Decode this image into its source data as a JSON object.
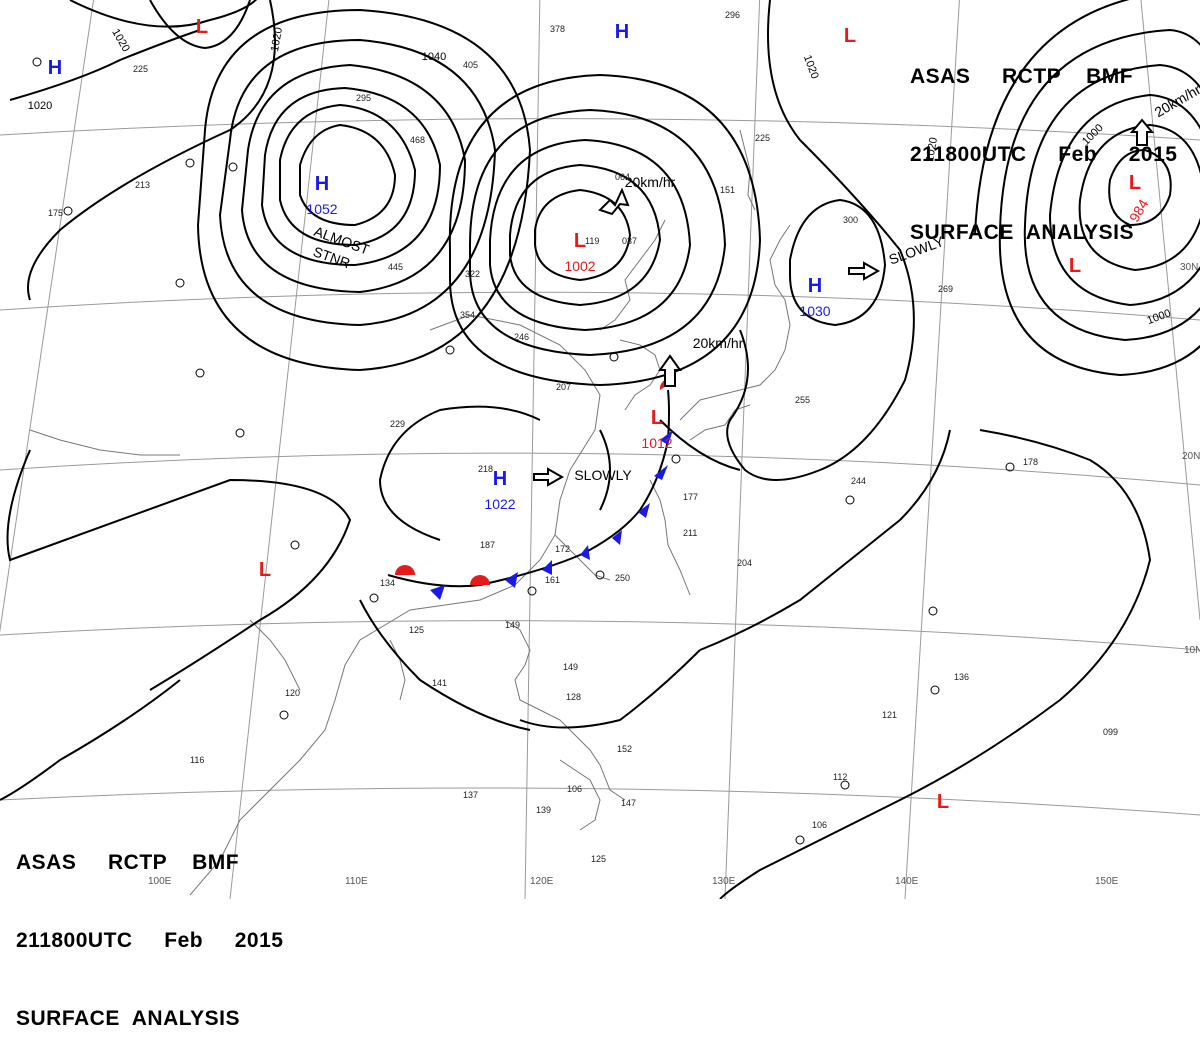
{
  "header_top": {
    "line1": "ASAS     RCTP    BMF",
    "line2": "211800UTC     Feb     2015",
    "line3": "SURFACE  ANALYSIS"
  },
  "header_bottom": {
    "line1": "ASAS     RCTP    BMF",
    "line2": "211800UTC     Feb     2015",
    "line3": "SURFACE  ANALYSIS"
  },
  "longitude_labels": [
    "100E",
    "110E",
    "120E",
    "130E",
    "140E",
    "150E"
  ],
  "latitude_labels": [
    "10N",
    "20N",
    "30N"
  ],
  "pressure_centers": [
    {
      "type": "H",
      "value": "",
      "color": "#1a1ae6"
    },
    {
      "type": "H",
      "value": "1052",
      "color": "#1a1ae6"
    },
    {
      "type": "H",
      "value": "",
      "color": "#1a1ae6"
    },
    {
      "type": "L",
      "value": "",
      "color": "#e61a1a"
    },
    {
      "type": "L",
      "value": "",
      "color": "#e61a1a"
    },
    {
      "type": "L",
      "value": "1002",
      "color": "#e61a1a"
    },
    {
      "type": "L",
      "value": "984",
      "color": "#e61a1a"
    },
    {
      "type": "L",
      "value": "",
      "color": "#e61a1a"
    },
    {
      "type": "H",
      "value": "1030",
      "color": "#1a1ae6"
    },
    {
      "type": "L",
      "value": "1012",
      "color": "#e61a1a"
    },
    {
      "type": "H",
      "value": "1022",
      "color": "#1a1ae6"
    },
    {
      "type": "L",
      "value": "",
      "color": "#e61a1a"
    },
    {
      "type": "L",
      "value": "",
      "color": "#e61a1a"
    }
  ],
  "isobar_labels": [
    "1020",
    "1020",
    "1020",
    "1040",
    "1020",
    "1020",
    "1000",
    "1000"
  ],
  "movement_labels": [
    "ALMOST",
    "STNR",
    "20km/hr",
    "SLOWLY",
    "20km/hr",
    "SLOWLY",
    "20km/hr"
  ],
  "station_labels": [
    "225",
    "295",
    "405",
    "378",
    "296",
    "468",
    "213",
    "175",
    "354",
    "322",
    "445",
    "225",
    "300",
    "269",
    "255",
    "244",
    "178",
    "229",
    "218",
    "187",
    "172",
    "250",
    "177",
    "211",
    "204",
    "134",
    "125",
    "149",
    "161",
    "141",
    "120",
    "149",
    "128",
    "152",
    "106",
    "147",
    "137",
    "139",
    "125",
    "116",
    "136",
    "121",
    "099",
    "112",
    "106",
    "119",
    "037",
    "064",
    "151",
    "207",
    "246"
  ],
  "colors": {
    "isobar": "#000000",
    "high": "#1a1ae6",
    "low": "#e61a1a",
    "cold_front": "#1a1ae6",
    "warm_front": "#e61a1a",
    "grid": "#9a9a9a",
    "coast": "#777777"
  }
}
